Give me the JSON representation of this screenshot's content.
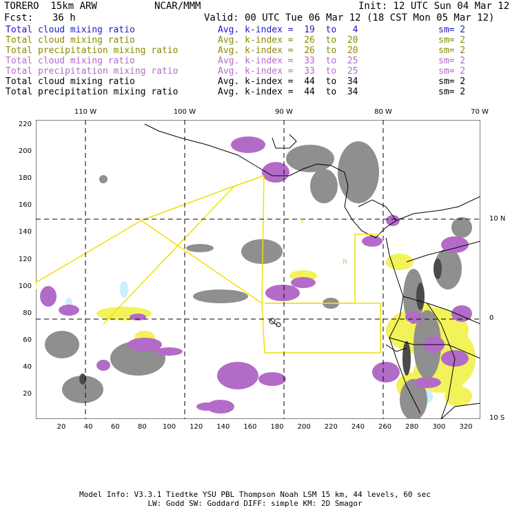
{
  "header": {
    "model": "TORERO  15km ARW",
    "org": "NCAR/MMM",
    "init": "Init: 12 UTC Sun 04 Mar 12",
    "fcst_label": "Fcst:",
    "fcst_value": "36 h",
    "valid": "Valid: 00 UTC Tue 06 Mar 12 (18 CST Mon 05 Mar 12)"
  },
  "legend": [
    {
      "name": "Total cloud mixing ratio",
      "avg": "Avg. k-index =  19  to   4",
      "sm": "sm= 2",
      "color": "#1a1acc"
    },
    {
      "name": "Total cloud mixing ratio",
      "avg": "Avg. k-index =  26  to  20",
      "sm": "sm= 2",
      "color": "#8a8a00"
    },
    {
      "name": "Total precipitation mixing ratio",
      "avg": "Avg. k-index =  26  to  20",
      "sm": "sm= 2",
      "color": "#8a8a00"
    },
    {
      "name": "Total cloud mixing ratio",
      "avg": "Avg. k-index =  33  to  25",
      "sm": "sm= 2",
      "color": "#b36bc8"
    },
    {
      "name": "Total precipitation mixing ratio",
      "avg": "Avg. k-index =  33  to  25",
      "sm": "sm= 2",
      "color": "#b36bc8"
    },
    {
      "name": "Total cloud mixing ratio",
      "avg": "Avg. k-index =  44  to  34",
      "sm": "sm= 2",
      "color": "#000000"
    },
    {
      "name": "Total precipitation mixing ratio",
      "avg": "Avg. k-index =  44  to  34",
      "sm": "sm= 2",
      "color": "#000000"
    }
  ],
  "map": {
    "lon_labels": [
      "110 W",
      "100 W",
      "90 W",
      "80 W",
      "70 W"
    ],
    "lat_labels": [
      "10 N",
      "0",
      "10 S"
    ],
    "x_ticks": [
      "20",
      "40",
      "60",
      "80",
      "100",
      "120",
      "140",
      "160",
      "180",
      "200",
      "220",
      "240",
      "260",
      "280",
      "300",
      "320"
    ],
    "y_ticks": [
      "20",
      "40",
      "60",
      "80",
      "100",
      "120",
      "140",
      "160",
      "180",
      "200",
      "220"
    ],
    "colors": {
      "purple": "#b36bc8",
      "yellow": "#f2f25a",
      "gray": "#8f8f8f",
      "cyan": "#c8f0ff",
      "boundary": "#f0e000"
    },
    "annotations": [
      "I",
      "R"
    ]
  },
  "footer": {
    "line1": "Model Info: V3.3.1   Tiedtke YSU PBL   Thompson    Noah LSM  15 km,   44 levels,   60 sec",
    "line2": "LW: Godd SW: Goddard DIFF: simple KM: 2D Smagor"
  }
}
